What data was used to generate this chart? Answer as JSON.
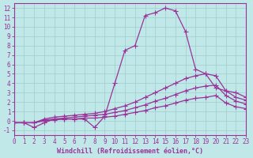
{
  "xlabel": "Windchill (Refroidissement éolien,°C)",
  "line_color": "#993399",
  "bg_color": "#c0e8e8",
  "grid_color": "#a0cccc",
  "xlim": [
    0,
    23
  ],
  "ylim": [
    -1.5,
    12.5
  ],
  "xticks": [
    0,
    1,
    2,
    3,
    4,
    5,
    6,
    7,
    8,
    9,
    10,
    11,
    12,
    13,
    14,
    15,
    16,
    17,
    18,
    19,
    20,
    21,
    22,
    23
  ],
  "yticks": [
    -1,
    0,
    1,
    2,
    3,
    4,
    5,
    6,
    7,
    8,
    9,
    10,
    11,
    12
  ],
  "curves": [
    [
      -0.2,
      -0.2,
      -0.7,
      -0.2,
      0.2,
      0.2,
      0.2,
      0.2,
      -0.7,
      0.5,
      4.0,
      7.5,
      8.0,
      11.2,
      11.5,
      12.0,
      11.7,
      9.5,
      5.5,
      5.0,
      3.5,
      3.2,
      3.0,
      2.5
    ],
    [
      -0.2,
      -0.2,
      -0.2,
      0.2,
      0.4,
      0.5,
      0.6,
      0.7,
      0.8,
      1.0,
      1.3,
      1.6,
      2.0,
      2.5,
      3.0,
      3.5,
      4.0,
      4.5,
      4.8,
      5.0,
      4.8,
      3.2,
      2.5,
      2.2
    ],
    [
      -0.2,
      -0.2,
      -0.2,
      0.1,
      0.2,
      0.3,
      0.4,
      0.5,
      0.6,
      0.7,
      0.9,
      1.1,
      1.4,
      1.7,
      2.1,
      2.4,
      2.8,
      3.2,
      3.5,
      3.7,
      3.8,
      2.7,
      2.1,
      1.8
    ],
    [
      -0.2,
      -0.2,
      -0.2,
      0.0,
      0.1,
      0.2,
      0.2,
      0.3,
      0.3,
      0.4,
      0.5,
      0.7,
      0.9,
      1.1,
      1.4,
      1.6,
      1.9,
      2.2,
      2.4,
      2.5,
      2.7,
      1.9,
      1.5,
      1.3
    ]
  ],
  "marker": "+",
  "markersize": 4.0,
  "linewidth": 0.9,
  "tick_fontsize": 5.5,
  "xlabel_fontsize": 6.0
}
